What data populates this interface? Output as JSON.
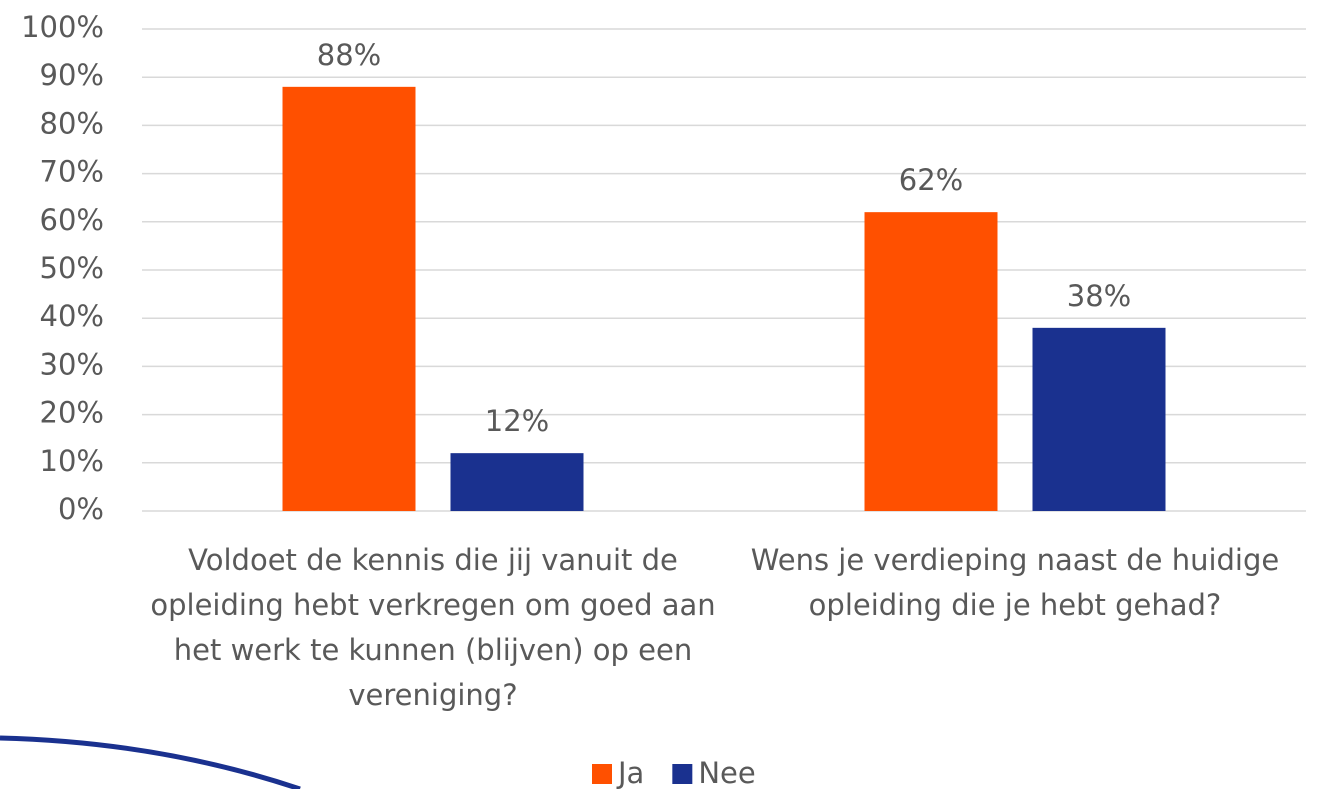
{
  "chart_data": {
    "type": "bar",
    "categories": [
      "Voldoet de kennis die jij vanuit de opleiding hebt verkregen om goed aan het werk te kunnen (blijven) op een vereniging?",
      "Wens je verdieping naast de huidige opleiding die je hebt gehad?"
    ],
    "series": [
      {
        "name": "Ja",
        "color": "#ff5000",
        "values": [
          88,
          62
        ],
        "value_labels": [
          "88%",
          "62%"
        ]
      },
      {
        "name": "Nee",
        "color": "#1a318f",
        "values": [
          12,
          38
        ],
        "value_labels": [
          "12%",
          "38%"
        ]
      }
    ],
    "ylim": [
      0,
      100
    ],
    "yticks": [
      {
        "value": 0,
        "label": "0%"
      },
      {
        "value": 10,
        "label": "10%"
      },
      {
        "value": 20,
        "label": "20%"
      },
      {
        "value": 30,
        "label": "30%"
      },
      {
        "value": 40,
        "label": "40%"
      },
      {
        "value": 50,
        "label": "50%"
      },
      {
        "value": 60,
        "label": "60%"
      },
      {
        "value": 70,
        "label": "70%"
      },
      {
        "value": 80,
        "label": "80%"
      },
      {
        "value": 90,
        "label": "90%"
      },
      {
        "value": 100,
        "label": "100%"
      }
    ],
    "grid": true,
    "legend": "bottom"
  }
}
